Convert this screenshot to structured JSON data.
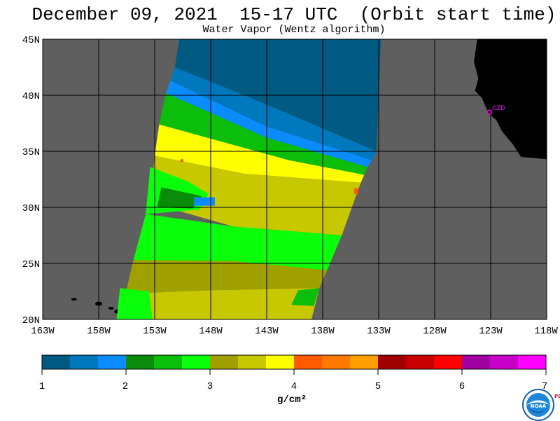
{
  "header": {
    "title": "December 09, 2021  15-17 UTC  (Orbit start time)",
    "subtitle": "Water Vapor (Wentz algorithm)"
  },
  "map": {
    "lat_labels": [
      "45N",
      "40N",
      "35N",
      "30N",
      "25N",
      "20N"
    ],
    "lon_labels": [
      "163W",
      "158W",
      "153W",
      "148W",
      "143W",
      "138W",
      "133W",
      "128W",
      "123W",
      "118W"
    ],
    "station_label": "CZD",
    "colors": {
      "land": "#000000",
      "no_data": "#5f5f5f",
      "station": "#ff00ff",
      "grid": "#000000"
    }
  },
  "colorbar": {
    "tick_labels": [
      "1",
      "2",
      "3",
      "4",
      "5",
      "6",
      "7"
    ],
    "unit": "g/cm²",
    "colors": [
      "#005a82",
      "#0078be",
      "#0a8cff",
      "#0a8c0a",
      "#0abe0a",
      "#0aff0a",
      "#a0a000",
      "#c8c800",
      "#ffff00",
      "#ff5a00",
      "#ff7800",
      "#ffa000",
      "#a00000",
      "#c80000",
      "#ff0000",
      "#a000a0",
      "#c800c8",
      "#ff00ff"
    ]
  },
  "logo": {
    "noaa_text": "NOAA",
    "psl_text": "PSL"
  }
}
